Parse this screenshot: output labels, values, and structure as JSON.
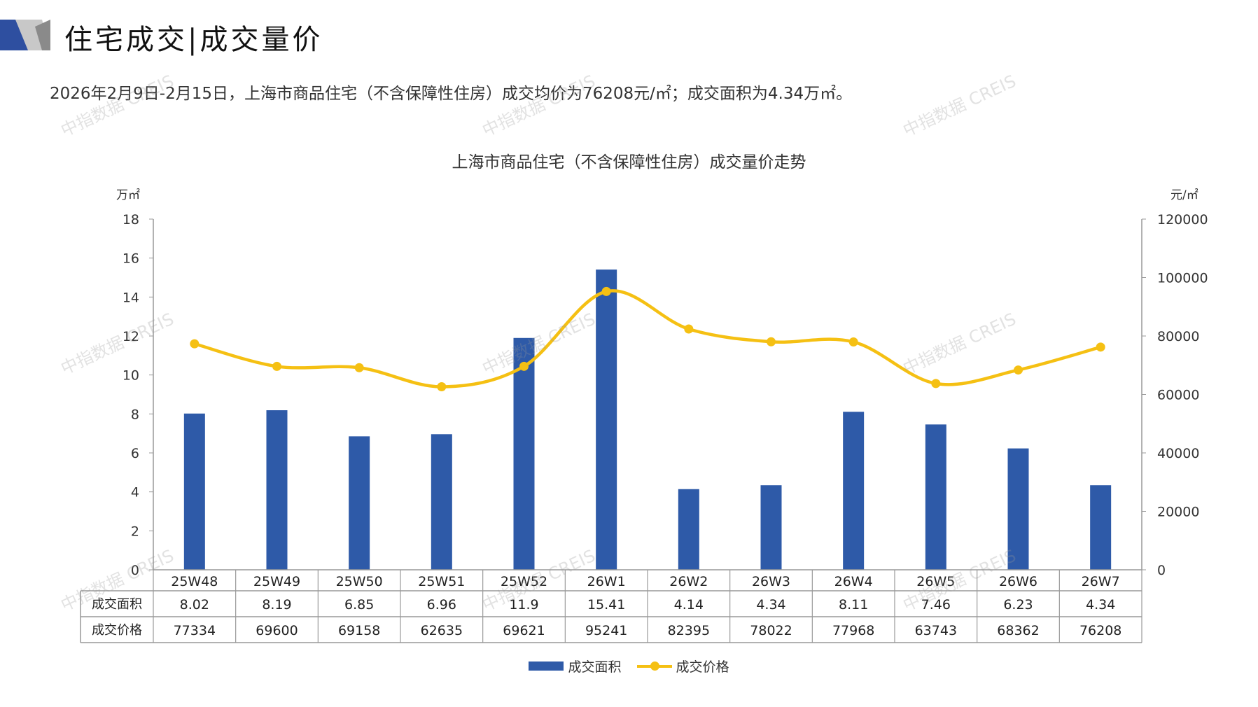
{
  "header": {
    "title": "住宅成交|成交量价",
    "subtitle": "2026年2月9日-2月15日，上海市商品住宅（不含保障性住房）成交均价为76208元/㎡；成交面积为4.34万㎡。"
  },
  "watermark": "中指数据 CREIS",
  "colors": {
    "bar": "#2e5aa8",
    "line": "#f5c013",
    "grid": "#999999"
  },
  "chart_data": {
    "type": "bar+line",
    "title": "上海市商品住宅（不含保障性住房）成交量价走势",
    "ylabel_left": "万㎡",
    "ylabel_right": "元/㎡",
    "ylim_left": [
      0,
      18
    ],
    "ylim_right": [
      0,
      120000
    ],
    "yticks_left": [
      "0",
      "2",
      "4",
      "6",
      "8",
      "10",
      "12",
      "14",
      "16",
      "18"
    ],
    "yticks_right": [
      "0",
      "20000",
      "40000",
      "60000",
      "80000",
      "100000",
      "120000"
    ],
    "categories": [
      "25W48",
      "25W49",
      "25W50",
      "25W51",
      "25W52",
      "26W1",
      "26W2",
      "26W3",
      "26W4",
      "26W5",
      "26W6",
      "26W7"
    ],
    "series": [
      {
        "name": "成交面积",
        "type": "bar",
        "axis": "left",
        "values": [
          8.02,
          8.19,
          6.85,
          6.96,
          11.9,
          15.41,
          4.14,
          4.34,
          8.11,
          7.46,
          6.23,
          4.34
        ],
        "labels": [
          "8.02",
          "8.19",
          "6.85",
          "6.96",
          "11.9",
          "15.41",
          "4.14",
          "4.34",
          "8.11",
          "7.46",
          "6.23",
          "4.34"
        ]
      },
      {
        "name": "成交价格",
        "type": "line",
        "axis": "right",
        "values": [
          77334,
          69600,
          69158,
          62635,
          69621,
          95241,
          82395,
          78022,
          77968,
          63743,
          68362,
          76208
        ],
        "labels": [
          "77334",
          "69600",
          "69158",
          "62635",
          "69621",
          "95241",
          "82395",
          "78022",
          "77968",
          "63743",
          "68362",
          "76208"
        ]
      }
    ],
    "legend": "bottom-center"
  }
}
